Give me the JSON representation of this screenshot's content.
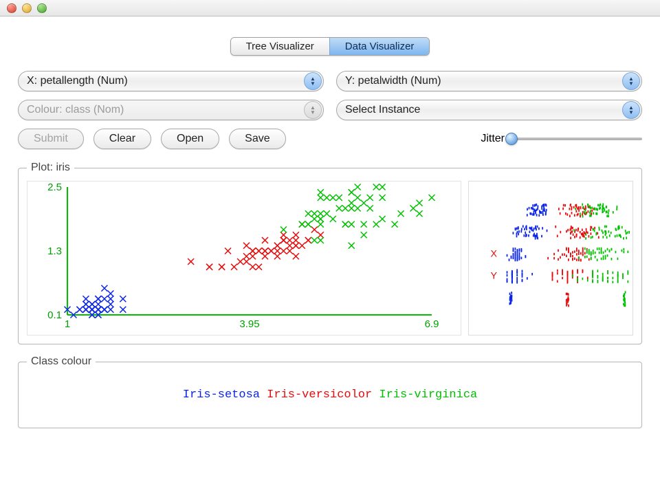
{
  "tabs": {
    "tree": "Tree Visualizer",
    "data": "Data Visualizer"
  },
  "dropdowns": {
    "x": "X: petallength (Num)",
    "y": "Y: petalwidth (Num)",
    "colour": "Colour: class (Nom)",
    "instance": "Select Instance"
  },
  "buttons": {
    "submit": "Submit",
    "clear": "Clear",
    "open": "Open",
    "save": "Save"
  },
  "jitter": {
    "label": "Jitter",
    "value": 0
  },
  "plot": {
    "legend_title": "Plot: iris",
    "xlim": [
      1,
      6.9
    ],
    "ylim": [
      0.1,
      2.5
    ],
    "x_ticks": [
      1,
      3.95,
      6.9
    ],
    "y_ticks": [
      0.1,
      1.3,
      2.5
    ],
    "axis_color": "#00c000",
    "tick_color": "#00a000",
    "marker": "x",
    "marker_size": 9,
    "marker_stroke": 1.5,
    "series": [
      {
        "name": "Iris-setosa",
        "color": "#0b25e8",
        "points": [
          [
            1.4,
            0.2
          ],
          [
            1.4,
            0.2
          ],
          [
            1.3,
            0.2
          ],
          [
            1.5,
            0.2
          ],
          [
            1.4,
            0.2
          ],
          [
            1.7,
            0.4
          ],
          [
            1.4,
            0.3
          ],
          [
            1.5,
            0.2
          ],
          [
            1.4,
            0.2
          ],
          [
            1.5,
            0.1
          ],
          [
            1.5,
            0.2
          ],
          [
            1.6,
            0.2
          ],
          [
            1.4,
            0.1
          ],
          [
            1.1,
            0.1
          ],
          [
            1.2,
            0.2
          ],
          [
            1.5,
            0.4
          ],
          [
            1.3,
            0.4
          ],
          [
            1.4,
            0.3
          ],
          [
            1.7,
            0.3
          ],
          [
            1.5,
            0.3
          ],
          [
            1.7,
            0.2
          ],
          [
            1.5,
            0.4
          ],
          [
            1.0,
            0.2
          ],
          [
            1.7,
            0.5
          ],
          [
            1.9,
            0.2
          ],
          [
            1.6,
            0.2
          ],
          [
            1.6,
            0.4
          ],
          [
            1.5,
            0.2
          ],
          [
            1.4,
            0.2
          ],
          [
            1.6,
            0.2
          ],
          [
            1.6,
            0.2
          ],
          [
            1.5,
            0.4
          ],
          [
            1.5,
            0.1
          ],
          [
            1.4,
            0.2
          ],
          [
            1.5,
            0.2
          ],
          [
            1.2,
            0.2
          ],
          [
            1.3,
            0.2
          ],
          [
            1.4,
            0.1
          ],
          [
            1.3,
            0.2
          ],
          [
            1.5,
            0.2
          ],
          [
            1.3,
            0.3
          ],
          [
            1.3,
            0.3
          ],
          [
            1.3,
            0.2
          ],
          [
            1.6,
            0.6
          ],
          [
            1.9,
            0.4
          ],
          [
            1.4,
            0.3
          ],
          [
            1.6,
            0.2
          ],
          [
            1.4,
            0.2
          ],
          [
            1.5,
            0.2
          ],
          [
            1.4,
            0.2
          ]
        ]
      },
      {
        "name": "Iris-versicolor",
        "color": "#e80b0b",
        "points": [
          [
            4.7,
            1.4
          ],
          [
            4.5,
            1.5
          ],
          [
            4.9,
            1.5
          ],
          [
            4.0,
            1.3
          ],
          [
            4.6,
            1.5
          ],
          [
            4.5,
            1.3
          ],
          [
            4.7,
            1.6
          ],
          [
            3.3,
            1.0
          ],
          [
            4.6,
            1.3
          ],
          [
            3.9,
            1.4
          ],
          [
            3.5,
            1.0
          ],
          [
            4.2,
            1.5
          ],
          [
            4.0,
            1.0
          ],
          [
            4.7,
            1.4
          ],
          [
            3.6,
            1.3
          ],
          [
            4.4,
            1.4
          ],
          [
            4.5,
            1.5
          ],
          [
            4.1,
            1.0
          ],
          [
            4.5,
            1.5
          ],
          [
            3.9,
            1.1
          ],
          [
            4.8,
            1.8
          ],
          [
            4.0,
            1.3
          ],
          [
            4.9,
            1.5
          ],
          [
            4.7,
            1.2
          ],
          [
            4.3,
            1.3
          ],
          [
            4.4,
            1.4
          ],
          [
            4.8,
            1.4
          ],
          [
            5.0,
            1.7
          ],
          [
            4.5,
            1.5
          ],
          [
            3.5,
            1.0
          ],
          [
            3.8,
            1.1
          ],
          [
            3.7,
            1.0
          ],
          [
            3.9,
            1.2
          ],
          [
            5.1,
            1.6
          ],
          [
            4.5,
            1.5
          ],
          [
            4.5,
            1.6
          ],
          [
            4.7,
            1.5
          ],
          [
            4.4,
            1.3
          ],
          [
            4.1,
            1.3
          ],
          [
            4.0,
            1.3
          ],
          [
            4.4,
            1.2
          ],
          [
            4.6,
            1.4
          ],
          [
            4.0,
            1.2
          ],
          [
            3.3,
            1.0
          ],
          [
            4.2,
            1.3
          ],
          [
            4.2,
            1.2
          ],
          [
            4.2,
            1.3
          ],
          [
            4.3,
            1.3
          ],
          [
            3.0,
            1.1
          ],
          [
            4.1,
            1.3
          ]
        ]
      },
      {
        "name": "Iris-virginica",
        "color": "#00c000",
        "points": [
          [
            6.0,
            2.5
          ],
          [
            5.1,
            1.9
          ],
          [
            5.9,
            2.1
          ],
          [
            5.6,
            1.8
          ],
          [
            5.8,
            2.2
          ],
          [
            6.6,
            2.1
          ],
          [
            4.5,
            1.7
          ],
          [
            6.3,
            1.8
          ],
          [
            5.8,
            1.8
          ],
          [
            6.1,
            2.5
          ],
          [
            5.1,
            2.0
          ],
          [
            5.3,
            1.9
          ],
          [
            5.5,
            2.1
          ],
          [
            5.0,
            2.0
          ],
          [
            5.1,
            2.4
          ],
          [
            5.3,
            2.3
          ],
          [
            5.5,
            1.8
          ],
          [
            6.7,
            2.2
          ],
          [
            6.9,
            2.3
          ],
          [
            5.0,
            1.5
          ],
          [
            5.7,
            2.3
          ],
          [
            4.9,
            2.0
          ],
          [
            6.7,
            2.0
          ],
          [
            4.9,
            1.8
          ],
          [
            5.7,
            2.1
          ],
          [
            6.0,
            1.8
          ],
          [
            4.8,
            1.8
          ],
          [
            4.9,
            1.8
          ],
          [
            5.6,
            2.1
          ],
          [
            5.8,
            1.6
          ],
          [
            6.1,
            1.9
          ],
          [
            6.4,
            2.0
          ],
          [
            5.6,
            2.2
          ],
          [
            5.1,
            1.5
          ],
          [
            5.6,
            1.4
          ],
          [
            6.1,
            2.3
          ],
          [
            5.6,
            2.4
          ],
          [
            5.5,
            1.8
          ],
          [
            4.8,
            1.8
          ],
          [
            5.4,
            2.1
          ],
          [
            5.6,
            2.4
          ],
          [
            5.1,
            2.3
          ],
          [
            5.1,
            1.9
          ],
          [
            5.9,
            2.3
          ],
          [
            5.7,
            2.5
          ],
          [
            5.2,
            2.3
          ],
          [
            5.0,
            1.9
          ],
          [
            5.2,
            2.0
          ],
          [
            5.4,
            2.3
          ],
          [
            5.1,
            1.8
          ]
        ]
      }
    ]
  },
  "attribute_strips": {
    "labels": [
      "",
      "",
      "X",
      "Y",
      ""
    ],
    "x_highlight_color": "#e80b0b",
    "y_highlight_color": "#e80b0b",
    "strip_height": 20
  },
  "class_legend": {
    "title": "Class colour",
    "items": [
      {
        "label": "Iris-setosa",
        "color": "#0b25e8"
      },
      {
        "label": "Iris-versicolor",
        "color": "#e80b0b"
      },
      {
        "label": "Iris-virginica",
        "color": "#00c000"
      }
    ]
  }
}
